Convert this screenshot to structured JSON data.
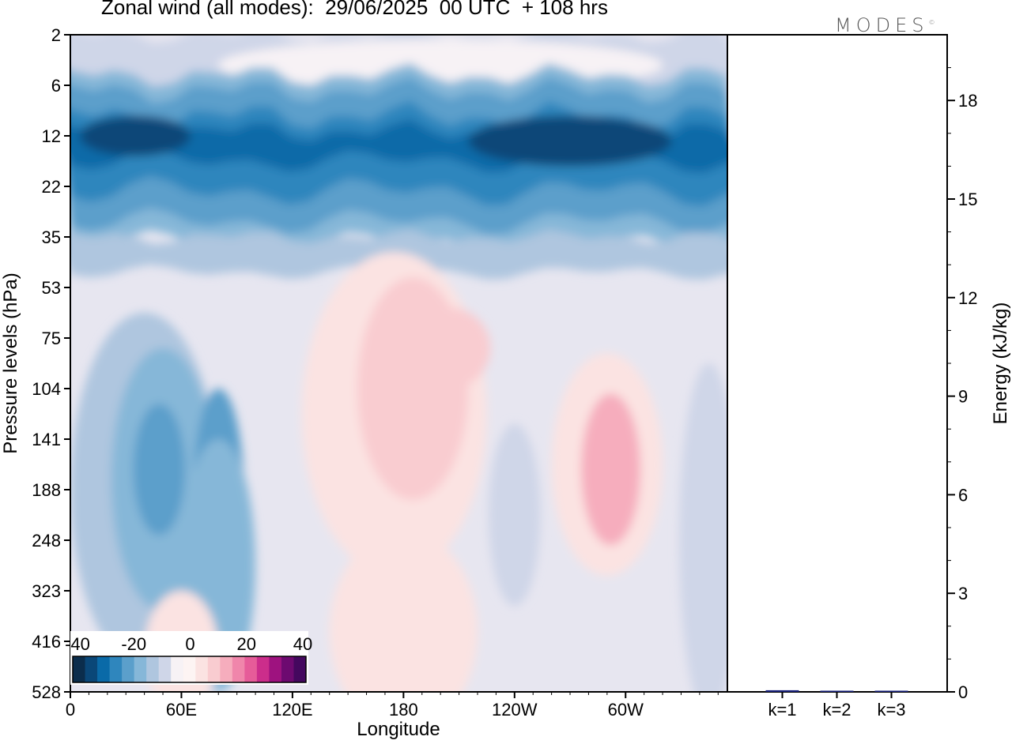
{
  "header": {
    "title": "Zonal wind (all modes):  29/06/2025  00 UTC  + 108 hrs",
    "logo": "MODES",
    "logo_mark": "©"
  },
  "chart_data": [
    {
      "type": "heatmap",
      "title": "Zonal wind (all modes):  29/06/2025  00 UTC  + 108 hrs",
      "xlabel": "Longitude",
      "ylabel": "Pressure levels (hPa)",
      "x_ticks": [
        "0",
        "60E",
        "120E",
        "180",
        "120W",
        "60W"
      ],
      "x_range_deg_east": [
        0,
        355
      ],
      "y_ticks": [
        "2",
        "6",
        "12",
        "22",
        "35",
        "53",
        "75",
        "104",
        "141",
        "188",
        "248",
        "323",
        "416",
        "528"
      ],
      "y_scale": "model levels (top 2 hPa to bottom 528 hPa)",
      "colorbar": {
        "ticks": [
          "-40",
          "-20",
          "0",
          "20",
          "40"
        ],
        "range": [
          -40,
          40
        ],
        "placement": "bottom-left inside plot"
      },
      "colors": {
        "negative": [
          "#0b2d4c",
          "#0a4778",
          "#0a6aa8",
          "#2f86bd",
          "#5b9fcb",
          "#86b7d8",
          "#afc6df",
          "#cfd6e8"
        ],
        "near_zero": [
          "#e7e6f0",
          "#f7f2f5",
          "#fdf4f3"
        ],
        "positive": [
          "#fbe3e2",
          "#f9ccd0",
          "#f6adbd",
          "#f086ab",
          "#e65c99",
          "#cc2d8b",
          "#9e127f",
          "#6d0a70",
          "#44085e"
        ]
      },
      "features": [
        {
          "pressure_hPa": [
            6,
            35
          ],
          "lon_range": "0-355",
          "value_approx": -25
        },
        {
          "pressure_hPa": [
            12,
            22
          ],
          "lon_range": "0-355",
          "value_approx": -32
        },
        {
          "pressure_hPa": [
            104,
            323
          ],
          "lon_center": "60E-90E",
          "value_approx": -22
        },
        {
          "pressure_hPa": [
            75,
            248
          ],
          "lon_center": "180-160W",
          "value_approx": 6
        },
        {
          "pressure_hPa": [
            104,
            248
          ],
          "lon_center": "70W",
          "value_approx": 12
        },
        {
          "pressure_hPa": [
            53,
            528
          ],
          "lon_range": "elsewhere",
          "value_approx": -3
        }
      ]
    },
    {
      "type": "bar",
      "ylabel": "Energy (kJ/kg)",
      "categories": [
        "k=1",
        "k=2",
        "k=3"
      ],
      "values": [
        0.05,
        0.03,
        0.01
      ],
      "ylim": [
        0,
        20
      ],
      "y_ticks": [
        "0",
        "3",
        "6",
        "9",
        "12",
        "15",
        "18"
      ]
    }
  ]
}
